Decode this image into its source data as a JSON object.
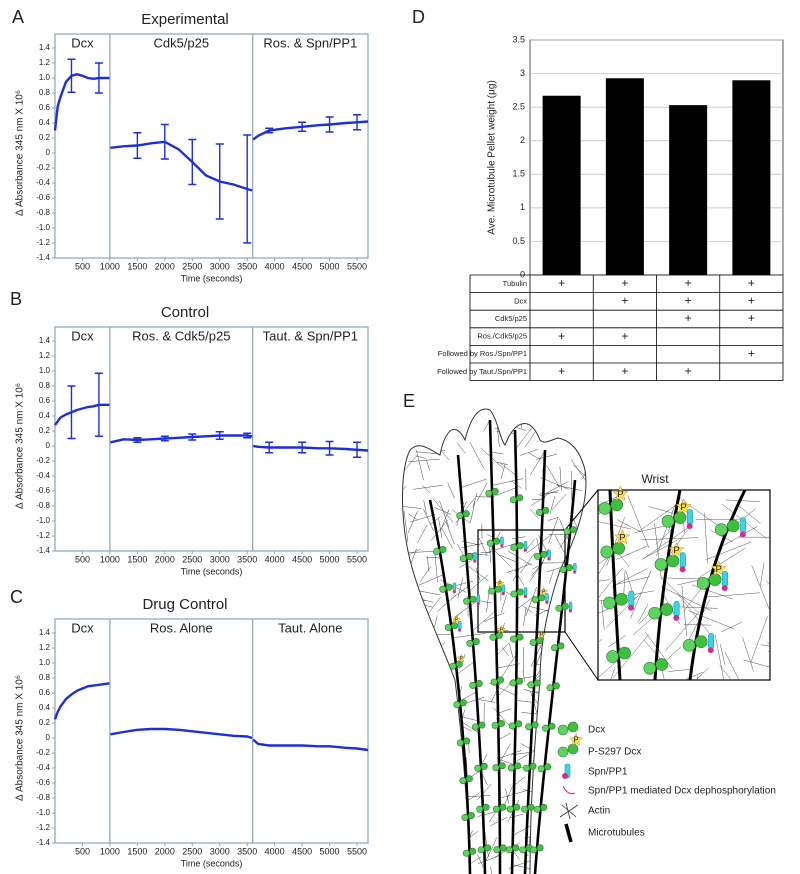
{
  "panel_labels": [
    "A",
    "B",
    "C",
    "D",
    "E"
  ],
  "chart_data": [
    {
      "type": "line",
      "title": "Experimental",
      "y_label": "Δ Absorbance 345 nm X 10⁶",
      "x_label": "Time (seconds)",
      "segment_labels": [
        "Dcx",
        "Cdk5/p25",
        "Ros. & Spn/PP1"
      ],
      "dividers": [
        1000,
        3600
      ],
      "xlim": [
        0,
        5700
      ],
      "xticks": [
        500,
        1000,
        1500,
        2000,
        2500,
        3000,
        3500,
        4000,
        4500,
        5000,
        5500
      ],
      "ylim": [
        -1.4,
        1.4
      ],
      "yticks": [
        -1.4,
        -1.2,
        {
          "value": -1,
          "label": "-1.0"
        },
        -0.8,
        -0.6,
        -0.4,
        -0.2,
        0,
        0.2,
        0.4,
        0.6,
        0.8,
        {
          "value": 1,
          "label": "1.0"
        },
        1.2,
        1.4
      ],
      "x": [
        0,
        50,
        100,
        200,
        300,
        400,
        500,
        600,
        700,
        800,
        900,
        990,
        1000,
        1010,
        1250,
        1500,
        1750,
        2000,
        2250,
        2500,
        2750,
        3000,
        3250,
        3500,
        3590,
        3600,
        3610,
        3700,
        3900,
        4200,
        4500,
        4800,
        5000,
        5300,
        5500,
        5700
      ],
      "series": [
        {
          "color": "#1f2fd6",
          "values": [
            0.3,
            0.62,
            0.75,
            0.95,
            1.03,
            1.05,
            1.03,
            1.0,
            0.99,
            1.0,
            1.0,
            1.0,
            null,
            0.07,
            0.09,
            0.1,
            0.13,
            0.15,
            0.05,
            -0.12,
            -0.3,
            -0.38,
            -0.42,
            -0.48,
            -0.5,
            null,
            0.18,
            0.23,
            0.3,
            0.33,
            0.35,
            0.37,
            0.38,
            0.4,
            0.41,
            0.42
          ],
          "errors": [
            null,
            null,
            null,
            null,
            0.22,
            null,
            null,
            null,
            null,
            0.2,
            null,
            null,
            null,
            null,
            null,
            0.17,
            null,
            0.23,
            null,
            0.3,
            null,
            0.5,
            null,
            0.72,
            null,
            null,
            null,
            null,
            0.03,
            null,
            0.06,
            null,
            0.1,
            null,
            0.1,
            null
          ]
        }
      ]
    },
    {
      "type": "line",
      "title": "Control",
      "y_label": "Δ Absorbance 345 nm X 10⁶",
      "x_label": "Time (seconds)",
      "segment_labels": [
        "Dcx",
        "Ros. & Cdk5/p25",
        "Taut. & Spn/PP1"
      ],
      "dividers": [
        1000,
        3600
      ],
      "xlim": [
        0,
        5700
      ],
      "xticks": [
        500,
        1000,
        1500,
        2000,
        2500,
        3000,
        3500,
        4000,
        4500,
        5000,
        5500
      ],
      "ylim": [
        -1.4,
        1.4
      ],
      "yticks": [
        -1.4,
        -1.2,
        {
          "value": -1,
          "label": "-1.0"
        },
        -0.8,
        -0.6,
        -0.4,
        -0.2,
        0,
        0.2,
        0.4,
        0.6,
        0.8,
        {
          "value": 1,
          "label": "1.0"
        },
        1.2,
        1.4
      ],
      "x": [
        0,
        50,
        100,
        200,
        300,
        400,
        500,
        600,
        700,
        800,
        900,
        990,
        1000,
        1010,
        1250,
        1500,
        1750,
        2000,
        2250,
        2500,
        2750,
        3000,
        3250,
        3500,
        3590,
        3600,
        3610,
        3700,
        3900,
        4200,
        4500,
        4800,
        5000,
        5300,
        5500,
        5700
      ],
      "series": [
        {
          "color": "#1f2fd6",
          "values": [
            0.28,
            0.33,
            0.38,
            0.42,
            0.45,
            0.48,
            0.5,
            0.52,
            0.53,
            0.55,
            0.55,
            0.55,
            null,
            0.05,
            0.09,
            0.08,
            0.09,
            0.1,
            0.11,
            0.12,
            0.13,
            0.14,
            0.14,
            0.14,
            0.13,
            null,
            0.0,
            -0.01,
            -0.02,
            -0.02,
            -0.02,
            -0.03,
            -0.03,
            -0.04,
            -0.05,
            -0.06
          ],
          "errors": [
            null,
            null,
            null,
            null,
            0.35,
            null,
            null,
            null,
            null,
            0.42,
            null,
            null,
            null,
            null,
            null,
            0.03,
            null,
            0.03,
            null,
            0.04,
            null,
            0.05,
            null,
            0.03,
            null,
            null,
            null,
            null,
            0.07,
            null,
            0.07,
            null,
            0.09,
            null,
            0.1,
            null
          ]
        }
      ]
    },
    {
      "type": "line",
      "title": "Drug Control",
      "y_label": "Δ Absorbance 345 nm X 10⁶",
      "x_label": "Time (seconds)",
      "segment_labels": [
        "Dcx",
        "Ros. Alone",
        "Taut. Alone"
      ],
      "dividers": [
        1000,
        3600
      ],
      "xlim": [
        0,
        5700
      ],
      "xticks": [
        500,
        1000,
        1500,
        2000,
        2500,
        3000,
        3500,
        4000,
        4500,
        5000,
        5500
      ],
      "ylim": [
        -1.4,
        1.4
      ],
      "yticks": [
        -1.4,
        -1.2,
        {
          "value": -1,
          "label": "-1.0"
        },
        -0.8,
        -0.6,
        -0.4,
        -0.2,
        0,
        0.2,
        0.4,
        0.6,
        0.8,
        {
          "value": 1,
          "label": "1.0"
        },
        1.2,
        1.4
      ],
      "x": [
        0,
        50,
        100,
        200,
        300,
        400,
        500,
        600,
        700,
        800,
        900,
        990,
        1000,
        1010,
        1250,
        1500,
        1750,
        2000,
        2250,
        2500,
        2750,
        3000,
        3250,
        3500,
        3590,
        3600,
        3610,
        3700,
        3900,
        4200,
        4500,
        4800,
        5000,
        5300,
        5500,
        5700
      ],
      "series": [
        {
          "color": "#1f2fd6",
          "values": [
            0.25,
            0.35,
            0.42,
            0.52,
            0.58,
            0.63,
            0.66,
            0.69,
            0.7,
            0.71,
            0.72,
            0.73,
            null,
            0.05,
            0.08,
            0.11,
            0.12,
            0.12,
            0.11,
            0.09,
            0.07,
            0.05,
            0.03,
            0.02,
            0.0,
            null,
            -0.02,
            -0.08,
            -0.1,
            -0.1,
            -0.1,
            -0.11,
            -0.11,
            -0.13,
            -0.14,
            -0.16
          ]
        }
      ]
    },
    {
      "type": "bar",
      "y_label": "Ave. Microtubule Pellet weight (µg)",
      "categories": [
        null,
        null,
        null,
        null
      ],
      "values": [
        2.67,
        2.93,
        2.53,
        2.9
      ],
      "color": "#000000",
      "ylim": [
        0,
        3.5
      ],
      "yticks": [
        0,
        0.5,
        1,
        1.5,
        2,
        2.5,
        3,
        3.5
      ],
      "grid": true,
      "table": {
        "rows": [
          {
            "label": "Tubulin",
            "cells": [
              "+",
              "+",
              "+",
              "+"
            ]
          },
          {
            "label": "Dcx",
            "cells": [
              null,
              "+",
              "+",
              "+"
            ]
          },
          {
            "label": "Cdk5/p25",
            "cells": [
              null,
              null,
              "+",
              "+"
            ]
          },
          {
            "label": "Ros./Cdk5/p25",
            "cells": [
              "+",
              "+",
              null,
              null
            ]
          },
          {
            "label": "Followed by Ros./Spn/PP1",
            "cells": [
              null,
              null,
              null,
              "+"
            ]
          },
          {
            "label": "Followed by Taut./Spn/PP1",
            "cells": [
              "+",
              "+",
              "+",
              null
            ]
          }
        ]
      }
    }
  ],
  "diagram": {
    "wrist_label": "Wrist",
    "p_label": "P",
    "legend": [
      "Dcx",
      "P-S297 Dcx",
      "Spn/PP1",
      "Spn/PP1 mediated Dcx dephosphorylation",
      "Actin",
      "Microtubules"
    ]
  }
}
